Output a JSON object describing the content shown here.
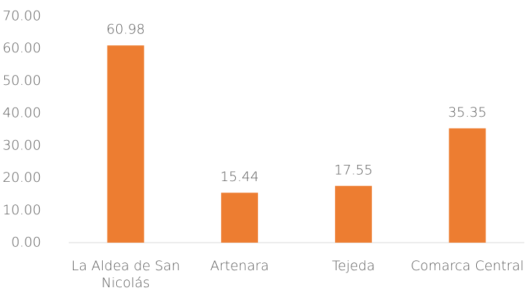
{
  "chart_data": {
    "type": "bar",
    "categories": [
      "La Aldea de San Nicolás",
      "Artenara",
      "Tejeda",
      "Comarca Central"
    ],
    "values": [
      60.98,
      15.44,
      17.55,
      35.35
    ],
    "color": "#ed7d31",
    "ylim": [
      0,
      70
    ],
    "yticks": [
      {
        "value": 0,
        "label": "0.00"
      },
      {
        "value": 10,
        "label": "10.00"
      },
      {
        "value": 20,
        "label": "20.00"
      },
      {
        "value": 30,
        "label": "30.00"
      },
      {
        "value": 40,
        "label": "40.00"
      },
      {
        "value": 50,
        "label": "50.00"
      },
      {
        "value": 60,
        "label": "60.00"
      },
      {
        "value": 70,
        "label": "70.00"
      }
    ],
    "grid": false
  }
}
